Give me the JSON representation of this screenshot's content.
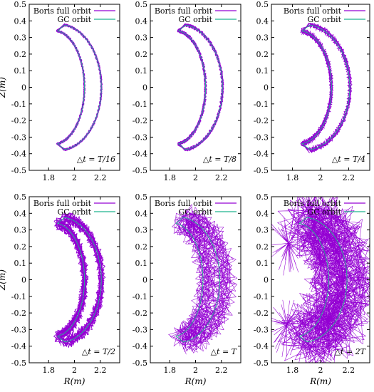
{
  "colors": {
    "boris": "#9400d3",
    "gc": "#1fb58f",
    "axis": "#000000"
  },
  "chart_data": [
    {
      "type": "line",
      "panel": "top-left",
      "annotation": "△t = T/16",
      "xlabel": "",
      "ylabel": "Z(m)",
      "xlim": [
        1.65,
        2.35
      ],
      "ylim": [
        -0.5,
        0.5
      ],
      "xticks": [
        "1.8",
        "2",
        "2.2"
      ],
      "yticks": [
        "0.5",
        "0.4",
        "0.3",
        "0.2",
        "0.1",
        "0",
        "-0.1",
        "-0.2",
        "-0.3",
        "-0.4",
        "-0.5"
      ],
      "legend": [
        "Boris full orbit",
        "GC orbit"
      ],
      "legend_position": "top-right",
      "series": [
        {
          "name": "Boris full orbit",
          "style": "thick band along banana orbit",
          "scatter": 0.004
        },
        {
          "name": "GC orbit",
          "style": "thin line hidden under Boris band"
        }
      ]
    },
    {
      "type": "line",
      "panel": "top-middle",
      "annotation": "△t = T/8",
      "xlabel": "",
      "ylabel": "",
      "xlim": [
        1.65,
        2.35
      ],
      "ylim": [
        -0.5,
        0.5
      ],
      "xticks": [
        "1.8",
        "2",
        "2.2"
      ],
      "yticks": [
        "0.5",
        "0.4",
        "0.3",
        "0.2",
        "0.1",
        "0",
        "-0.1",
        "-0.2",
        "-0.3",
        "-0.4",
        "-0.5"
      ],
      "legend": [
        "Boris full orbit",
        "GC orbit"
      ],
      "legend_position": "top-right",
      "series": [
        {
          "name": "Boris full orbit",
          "style": "thick band along banana orbit",
          "scatter": 0.006
        },
        {
          "name": "GC orbit",
          "style": "thin line"
        }
      ]
    },
    {
      "type": "line",
      "panel": "top-right",
      "annotation": "△t = T/4",
      "xlabel": "",
      "ylabel": "",
      "xlim": [
        1.65,
        2.35
      ],
      "ylim": [
        -0.5,
        0.5
      ],
      "xticks": [
        "1.8",
        "2",
        "2.2"
      ],
      "yticks": [
        "0.5",
        "0.4",
        "0.3",
        "0.2",
        "0.1",
        "0",
        "-0.1",
        "-0.2",
        "-0.3",
        "-0.4",
        "-0.5"
      ],
      "legend": [
        "Boris full orbit",
        "GC orbit"
      ],
      "legend_position": "top-right",
      "series": [
        {
          "name": "Boris full orbit",
          "style": "band with visible gyration",
          "scatter": 0.012
        },
        {
          "name": "GC orbit",
          "style": "thin line"
        }
      ]
    },
    {
      "type": "line",
      "panel": "bottom-left",
      "annotation": "△t = T/2",
      "xlabel": "R(m)",
      "ylabel": "Z(m)",
      "xlim": [
        1.65,
        2.35
      ],
      "ylim": [
        -0.5,
        0.5
      ],
      "xticks": [
        "1.8",
        "2",
        "2.2"
      ],
      "yticks": [
        "0.5",
        "0.4",
        "0.3",
        "0.2",
        "0.1",
        "0",
        "-0.1",
        "-0.2",
        "-0.3",
        "-0.4",
        "-0.5"
      ],
      "legend": [
        "Boris full orbit",
        "GC orbit"
      ],
      "legend_position": "top-right",
      "series": [
        {
          "name": "Boris full orbit",
          "style": "band with spiky gyration",
          "scatter": 0.025
        },
        {
          "name": "GC orbit",
          "style": "thin line"
        }
      ]
    },
    {
      "type": "line",
      "panel": "bottom-middle",
      "annotation": "△t = T",
      "xlabel": "R(m)",
      "ylabel": "",
      "xlim": [
        1.65,
        2.35
      ],
      "ylim": [
        -0.5,
        0.5
      ],
      "xticks": [
        "1.8",
        "2",
        "2.2"
      ],
      "yticks": [
        "0.5",
        "0.4",
        "0.3",
        "0.2",
        "0.1",
        "0",
        "-0.1",
        "-0.2",
        "-0.3",
        "-0.4",
        "-0.5"
      ],
      "legend": [
        "Boris full orbit",
        "GC orbit"
      ],
      "legend_position": "top-right",
      "series": [
        {
          "name": "Boris full orbit",
          "style": "wide drifting band with large gyration",
          "scatter": 0.05
        },
        {
          "name": "GC orbit",
          "style": "thin line visible inside band"
        }
      ]
    },
    {
      "type": "line",
      "panel": "bottom-right",
      "annotation": "△t = 2T",
      "xlabel": "R(m)",
      "ylabel": "",
      "xlim": [
        1.65,
        2.35
      ],
      "ylim": [
        -0.5,
        0.5
      ],
      "xticks": [
        "1.8",
        "2",
        "2.2"
      ],
      "yticks": [
        "0.5",
        "0.4",
        "0.3",
        "0.2",
        "0.1",
        "0",
        "-0.1",
        "-0.2",
        "-0.3",
        "-0.4",
        "-0.5"
      ],
      "legend": [
        "Boris full orbit",
        "GC orbit"
      ],
      "legend_position": "top-right",
      "series": [
        {
          "name": "Boris full orbit",
          "style": "scattered star-like bursts",
          "scatter": 0.12
        },
        {
          "name": "GC orbit",
          "style": "thin line at lower-right arc"
        }
      ]
    }
  ]
}
